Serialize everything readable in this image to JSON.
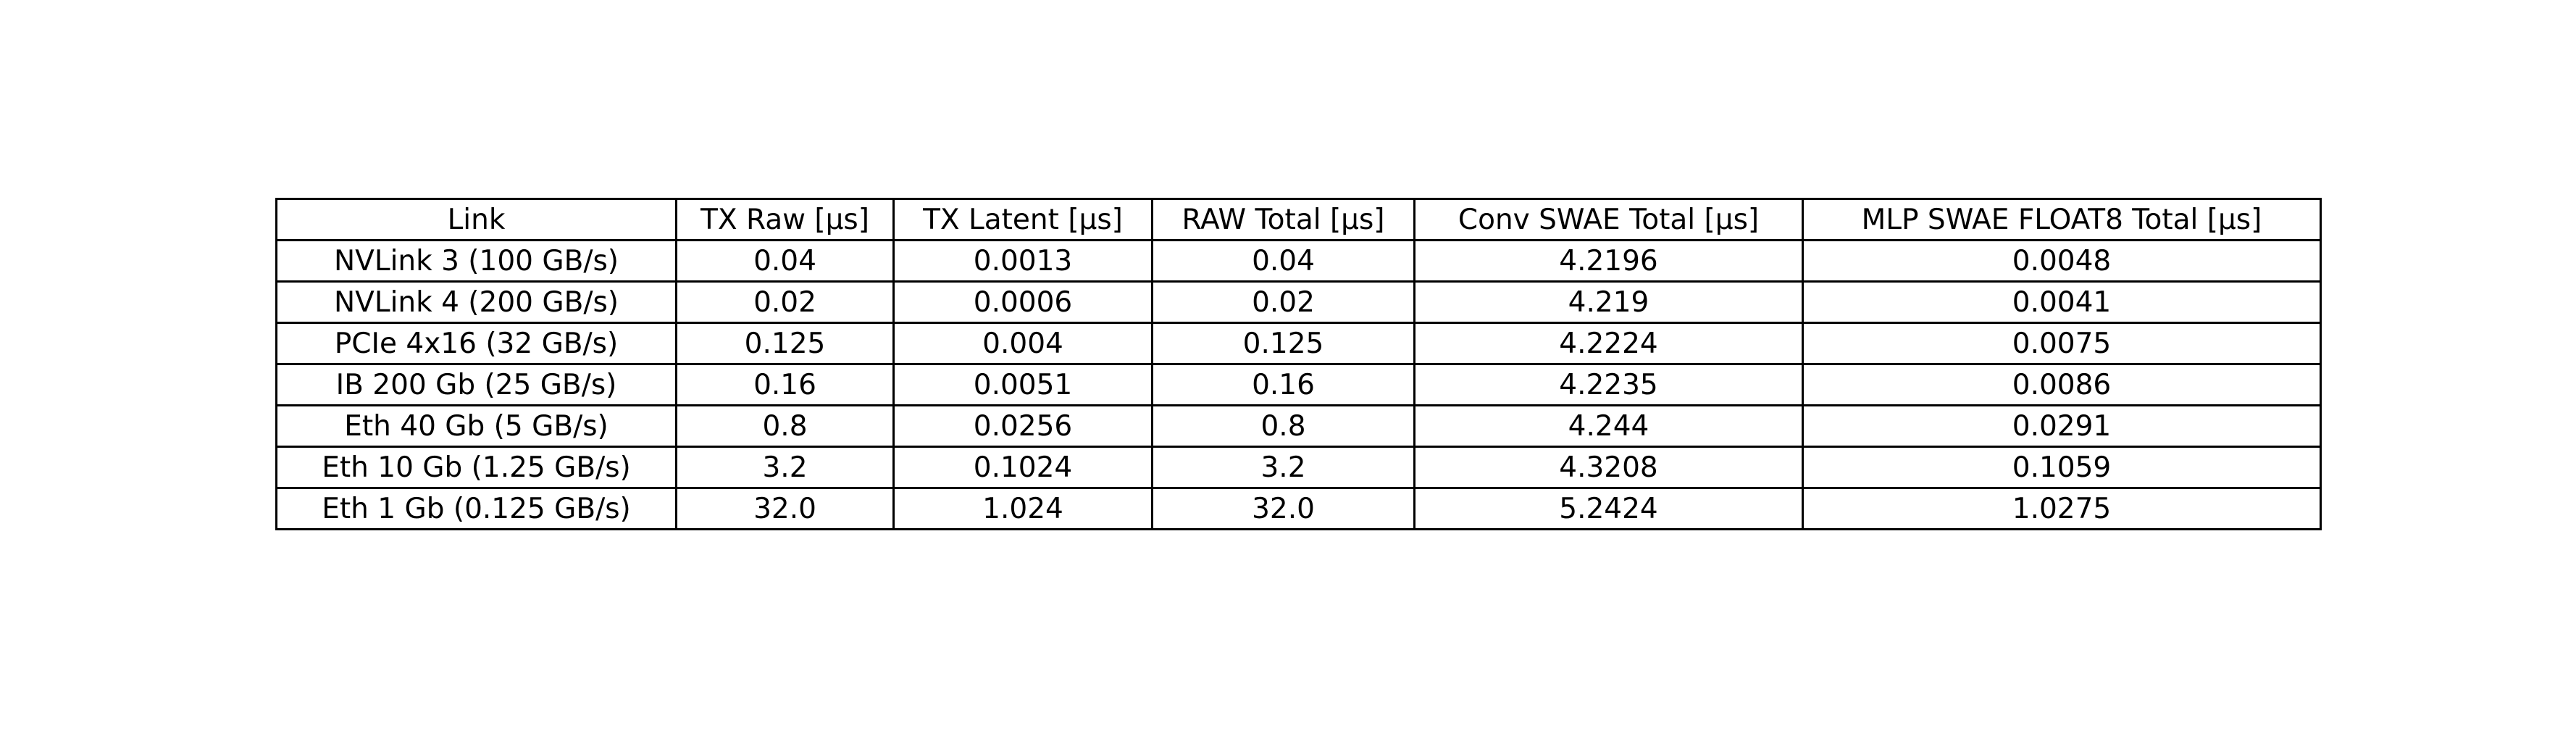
{
  "chart_data": {
    "type": "table",
    "columns": [
      "Link",
      "TX Raw [µs]",
      "TX Latent [µs]",
      "RAW Total [µs]",
      "Conv SWAE Total [µs]",
      "MLP SWAE FLOAT8 Total [µs]"
    ],
    "rows": [
      [
        "NVLink 3 (100 GB/s)",
        "0.04",
        "0.0013",
        "0.04",
        "4.2196",
        "0.0048"
      ],
      [
        "NVLink 4 (200 GB/s)",
        "0.02",
        "0.0006",
        "0.02",
        "4.219",
        "0.0041"
      ],
      [
        "PCIe 4x16 (32 GB/s)",
        "0.125",
        "0.004",
        "0.125",
        "4.2224",
        "0.0075"
      ],
      [
        "IB 200 Gb (25 GB/s)",
        "0.16",
        "0.0051",
        "0.16",
        "4.2235",
        "0.0086"
      ],
      [
        "Eth 40 Gb (5 GB/s)",
        "0.8",
        "0.0256",
        "0.8",
        "4.244",
        "0.0291"
      ],
      [
        "Eth 10 Gb (1.25 GB/s)",
        "3.2",
        "0.1024",
        "3.2",
        "4.3208",
        "0.1059"
      ],
      [
        "Eth 1 Gb (0.125 GB/s)",
        "32.0",
        "1.024",
        "32.0",
        "5.2424",
        "1.0275"
      ]
    ]
  }
}
